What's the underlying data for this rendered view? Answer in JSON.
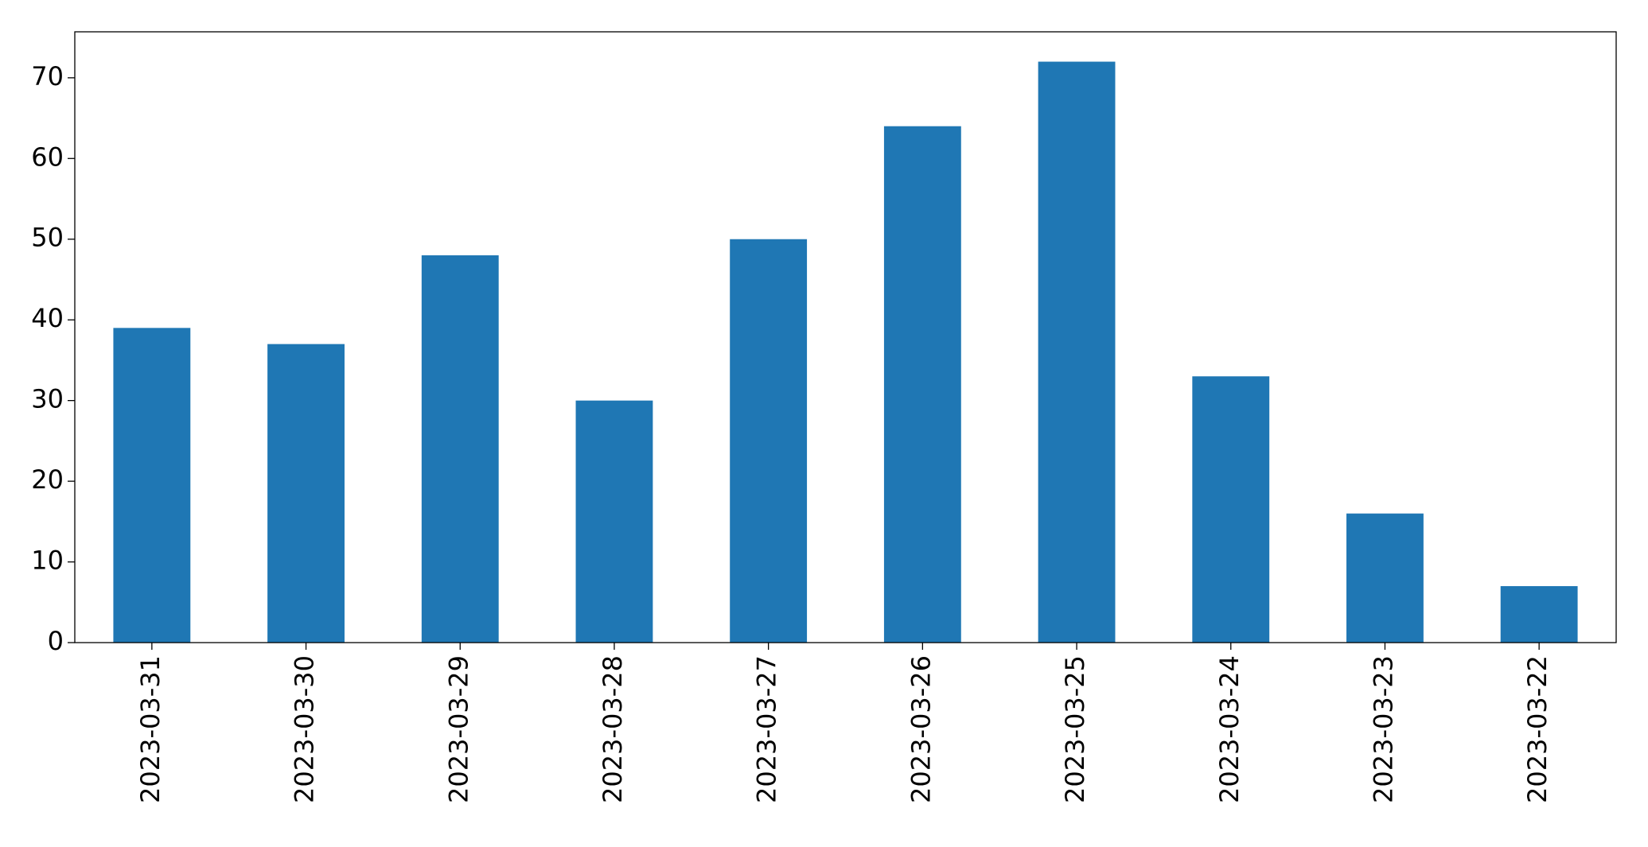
{
  "chart_data": {
    "type": "bar",
    "categories": [
      "2023-03-31",
      "2023-03-30",
      "2023-03-29",
      "2023-03-28",
      "2023-03-27",
      "2023-03-26",
      "2023-03-25",
      "2023-03-24",
      "2023-03-23",
      "2023-03-22"
    ],
    "values": [
      39,
      37,
      48,
      30,
      50,
      64,
      72,
      33,
      16,
      7
    ],
    "color": "#1f77b4",
    "ylim": [
      0,
      75.7
    ],
    "yticks": [
      0,
      10,
      20,
      30,
      40,
      50,
      60,
      70
    ],
    "grid": false
  }
}
